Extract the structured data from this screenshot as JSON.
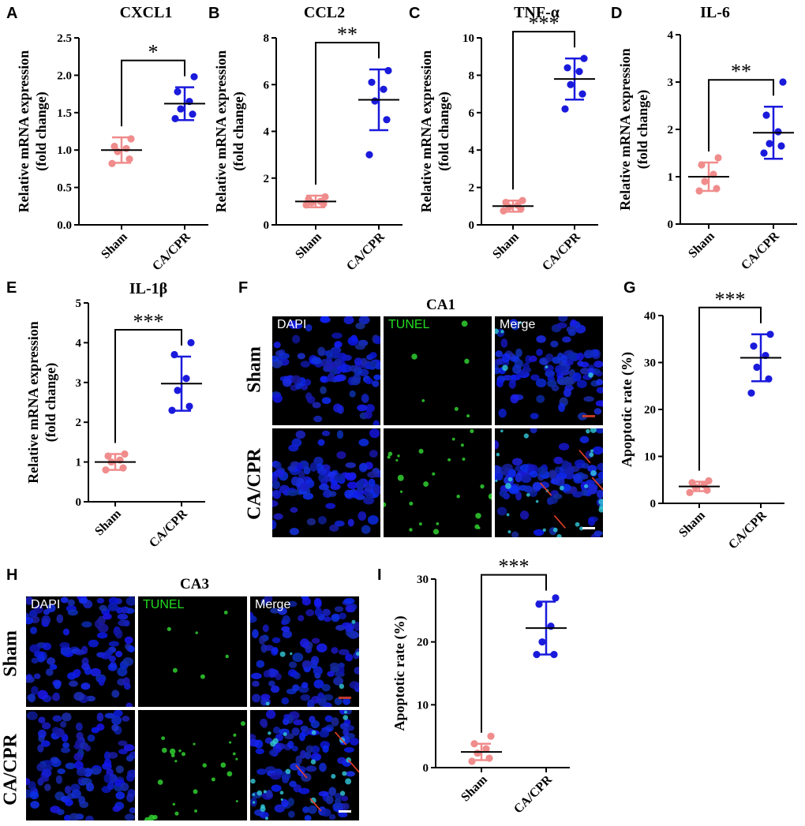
{
  "colors": {
    "sham": "#f08c8c",
    "cacpr": "#1a1adc",
    "tunel_text": "#22dd22",
    "arrow": "#e8402c"
  },
  "group_labels": [
    "Sham",
    "CA/CPR"
  ],
  "charts": [
    {
      "letter": "A",
      "title": "CXCL1",
      "ylabel1": "Relative mRNA expression",
      "ylabel2": "(fold change)",
      "ylim": [
        0,
        2.5
      ],
      "ticks": [
        "0.0",
        "0.5",
        "1.0",
        "1.5",
        "2.0",
        "2.5"
      ],
      "sig": "*",
      "sham": {
        "mean": 1.0,
        "sd": 0.17,
        "points": [
          0.82,
          0.88,
          0.98,
          1.02,
          1.05,
          1.15
        ]
      },
      "cacpr": {
        "mean": 1.62,
        "sd": 0.22,
        "points": [
          1.42,
          1.48,
          1.55,
          1.65,
          1.78,
          1.98
        ]
      }
    },
    {
      "letter": "B",
      "title": "CCL2",
      "ylabel1": "Relative mRNA expression",
      "ylabel2": "(fold change)",
      "ylim": [
        0,
        8
      ],
      "ticks": [
        "0",
        "2",
        "4",
        "6",
        "8"
      ],
      "sig": "**",
      "sham": {
        "mean": 1.0,
        "sd": 0.25,
        "points": [
          0.85,
          0.9,
          0.95,
          1.0,
          1.1,
          1.2
        ]
      },
      "cacpr": {
        "mean": 5.35,
        "sd": 1.3,
        "points": [
          3.0,
          4.5,
          5.3,
          5.8,
          6.1,
          6.6
        ]
      }
    },
    {
      "letter": "C",
      "title": "TNF-α",
      "ylabel1": "Relative mRNA expression",
      "ylabel2": "(fold change)",
      "ylim": [
        0,
        10
      ],
      "ticks": [
        "0",
        "2",
        "4",
        "6",
        "8",
        "10"
      ],
      "sig": "***",
      "sham": {
        "mean": 1.0,
        "sd": 0.3,
        "points": [
          0.75,
          0.85,
          0.95,
          1.05,
          1.2,
          1.3
        ]
      },
      "cacpr": {
        "mean": 7.8,
        "sd": 1.1,
        "points": [
          6.2,
          7.0,
          7.5,
          8.2,
          8.4,
          8.9
        ]
      }
    },
    {
      "letter": "D",
      "title": "IL-6",
      "ylabel1": "Relative mRNA expression",
      "ylabel2": "(fold change)",
      "ylim": [
        0,
        4
      ],
      "ticks": [
        "0",
        "1",
        "2",
        "3",
        "4"
      ],
      "sig": "**",
      "sham": {
        "mean": 1.0,
        "sd": 0.3,
        "points": [
          0.7,
          0.75,
          0.9,
          1.05,
          1.25,
          1.4
        ]
      },
      "cacpr": {
        "mean": 1.93,
        "sd": 0.55,
        "points": [
          1.5,
          1.65,
          1.7,
          1.95,
          2.3,
          3.0
        ]
      }
    },
    {
      "letter": "E",
      "title": "IL-1β",
      "ylabel1": "Relative mRNA expression",
      "ylabel2": "(fold change)",
      "ylim": [
        0,
        5
      ],
      "ticks": [
        "0",
        "1",
        "2",
        "3",
        "4",
        "5"
      ],
      "sig": "***",
      "sham": {
        "mean": 1.0,
        "sd": 0.2,
        "points": [
          0.8,
          0.85,
          1.0,
          1.05,
          1.15,
          1.2
        ]
      },
      "cacpr": {
        "mean": 2.97,
        "sd": 0.68,
        "points": [
          2.3,
          2.4,
          2.8,
          3.1,
          3.7,
          4.0
        ]
      }
    },
    {
      "letter": "G",
      "title": "",
      "ylabel1": "Apoptotic rate (%)",
      "ylabel2": "",
      "ylim": [
        0,
        40
      ],
      "ticks": [
        "0",
        "10",
        "20",
        "30",
        "40"
      ],
      "sig": "***",
      "sham": {
        "mean": 3.6,
        "sd": 1.0,
        "points": [
          2.3,
          2.8,
          3.5,
          3.9,
          4.4,
          4.8
        ]
      },
      "cacpr": {
        "mean": 31.0,
        "sd": 5.0,
        "points": [
          23.5,
          26.5,
          29.0,
          31.5,
          33.5,
          36.0
        ]
      }
    },
    {
      "letter": "I",
      "title": "",
      "ylabel1": "Apoptotic rate (%)",
      "ylabel2": "",
      "ylim": [
        0,
        30
      ],
      "ticks": [
        "0",
        "10",
        "20",
        "30"
      ],
      "sig": "***",
      "sham": {
        "mean": 2.5,
        "sd": 1.3,
        "points": [
          1.0,
          1.5,
          2.3,
          3.0,
          3.8,
          5.0
        ]
      },
      "cacpr": {
        "mean": 22.2,
        "sd": 4.2,
        "points": [
          18.0,
          18.0,
          20.0,
          22.5,
          26.0,
          27.0
        ]
      }
    }
  ],
  "micrographs": [
    {
      "letter": "F",
      "title": "CA1",
      "columns": [
        "DAPI",
        "TUNEL",
        "Merge"
      ],
      "rows": [
        "Sham",
        "CA/CPR"
      ]
    },
    {
      "letter": "H",
      "title": "CA3",
      "columns": [
        "DAPI",
        "TUNEL",
        "Merge"
      ],
      "rows": [
        "Sham",
        "CA/CPR"
      ]
    }
  ]
}
